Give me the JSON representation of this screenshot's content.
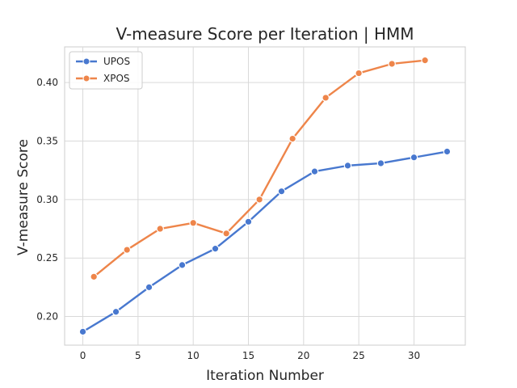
{
  "chart_data": {
    "type": "line",
    "title": "V-measure Score per Iteration | HMM",
    "xlabel": "Iteration Number",
    "ylabel": "V-measure Score",
    "xlim": [
      -1.65,
      34.65
    ],
    "ylim": [
      0.1755,
      0.4305
    ],
    "xticks": [
      0,
      5,
      10,
      15,
      20,
      25,
      30
    ],
    "yticks": [
      0.2,
      0.25,
      0.3,
      0.35,
      0.4
    ],
    "ytick_labels": [
      "0.20",
      "0.25",
      "0.30",
      "0.35",
      "0.40"
    ],
    "grid": true,
    "legend_position": "top-left",
    "series": [
      {
        "name": "UPOS",
        "color": "#4878cf",
        "x": [
          0,
          3,
          6,
          9,
          12,
          15,
          18,
          21,
          24,
          27,
          30,
          33
        ],
        "y": [
          0.187,
          0.204,
          0.225,
          0.244,
          0.258,
          0.281,
          0.307,
          0.324,
          0.329,
          0.331,
          0.336,
          0.341
        ]
      },
      {
        "name": "XPOS",
        "color": "#ee854a",
        "x": [
          1,
          4,
          7,
          10,
          13,
          16,
          19,
          22,
          25,
          28,
          31
        ],
        "y": [
          0.234,
          0.257,
          0.275,
          0.28,
          0.271,
          0.3,
          0.352,
          0.387,
          0.408,
          0.416,
          0.419
        ]
      }
    ]
  }
}
